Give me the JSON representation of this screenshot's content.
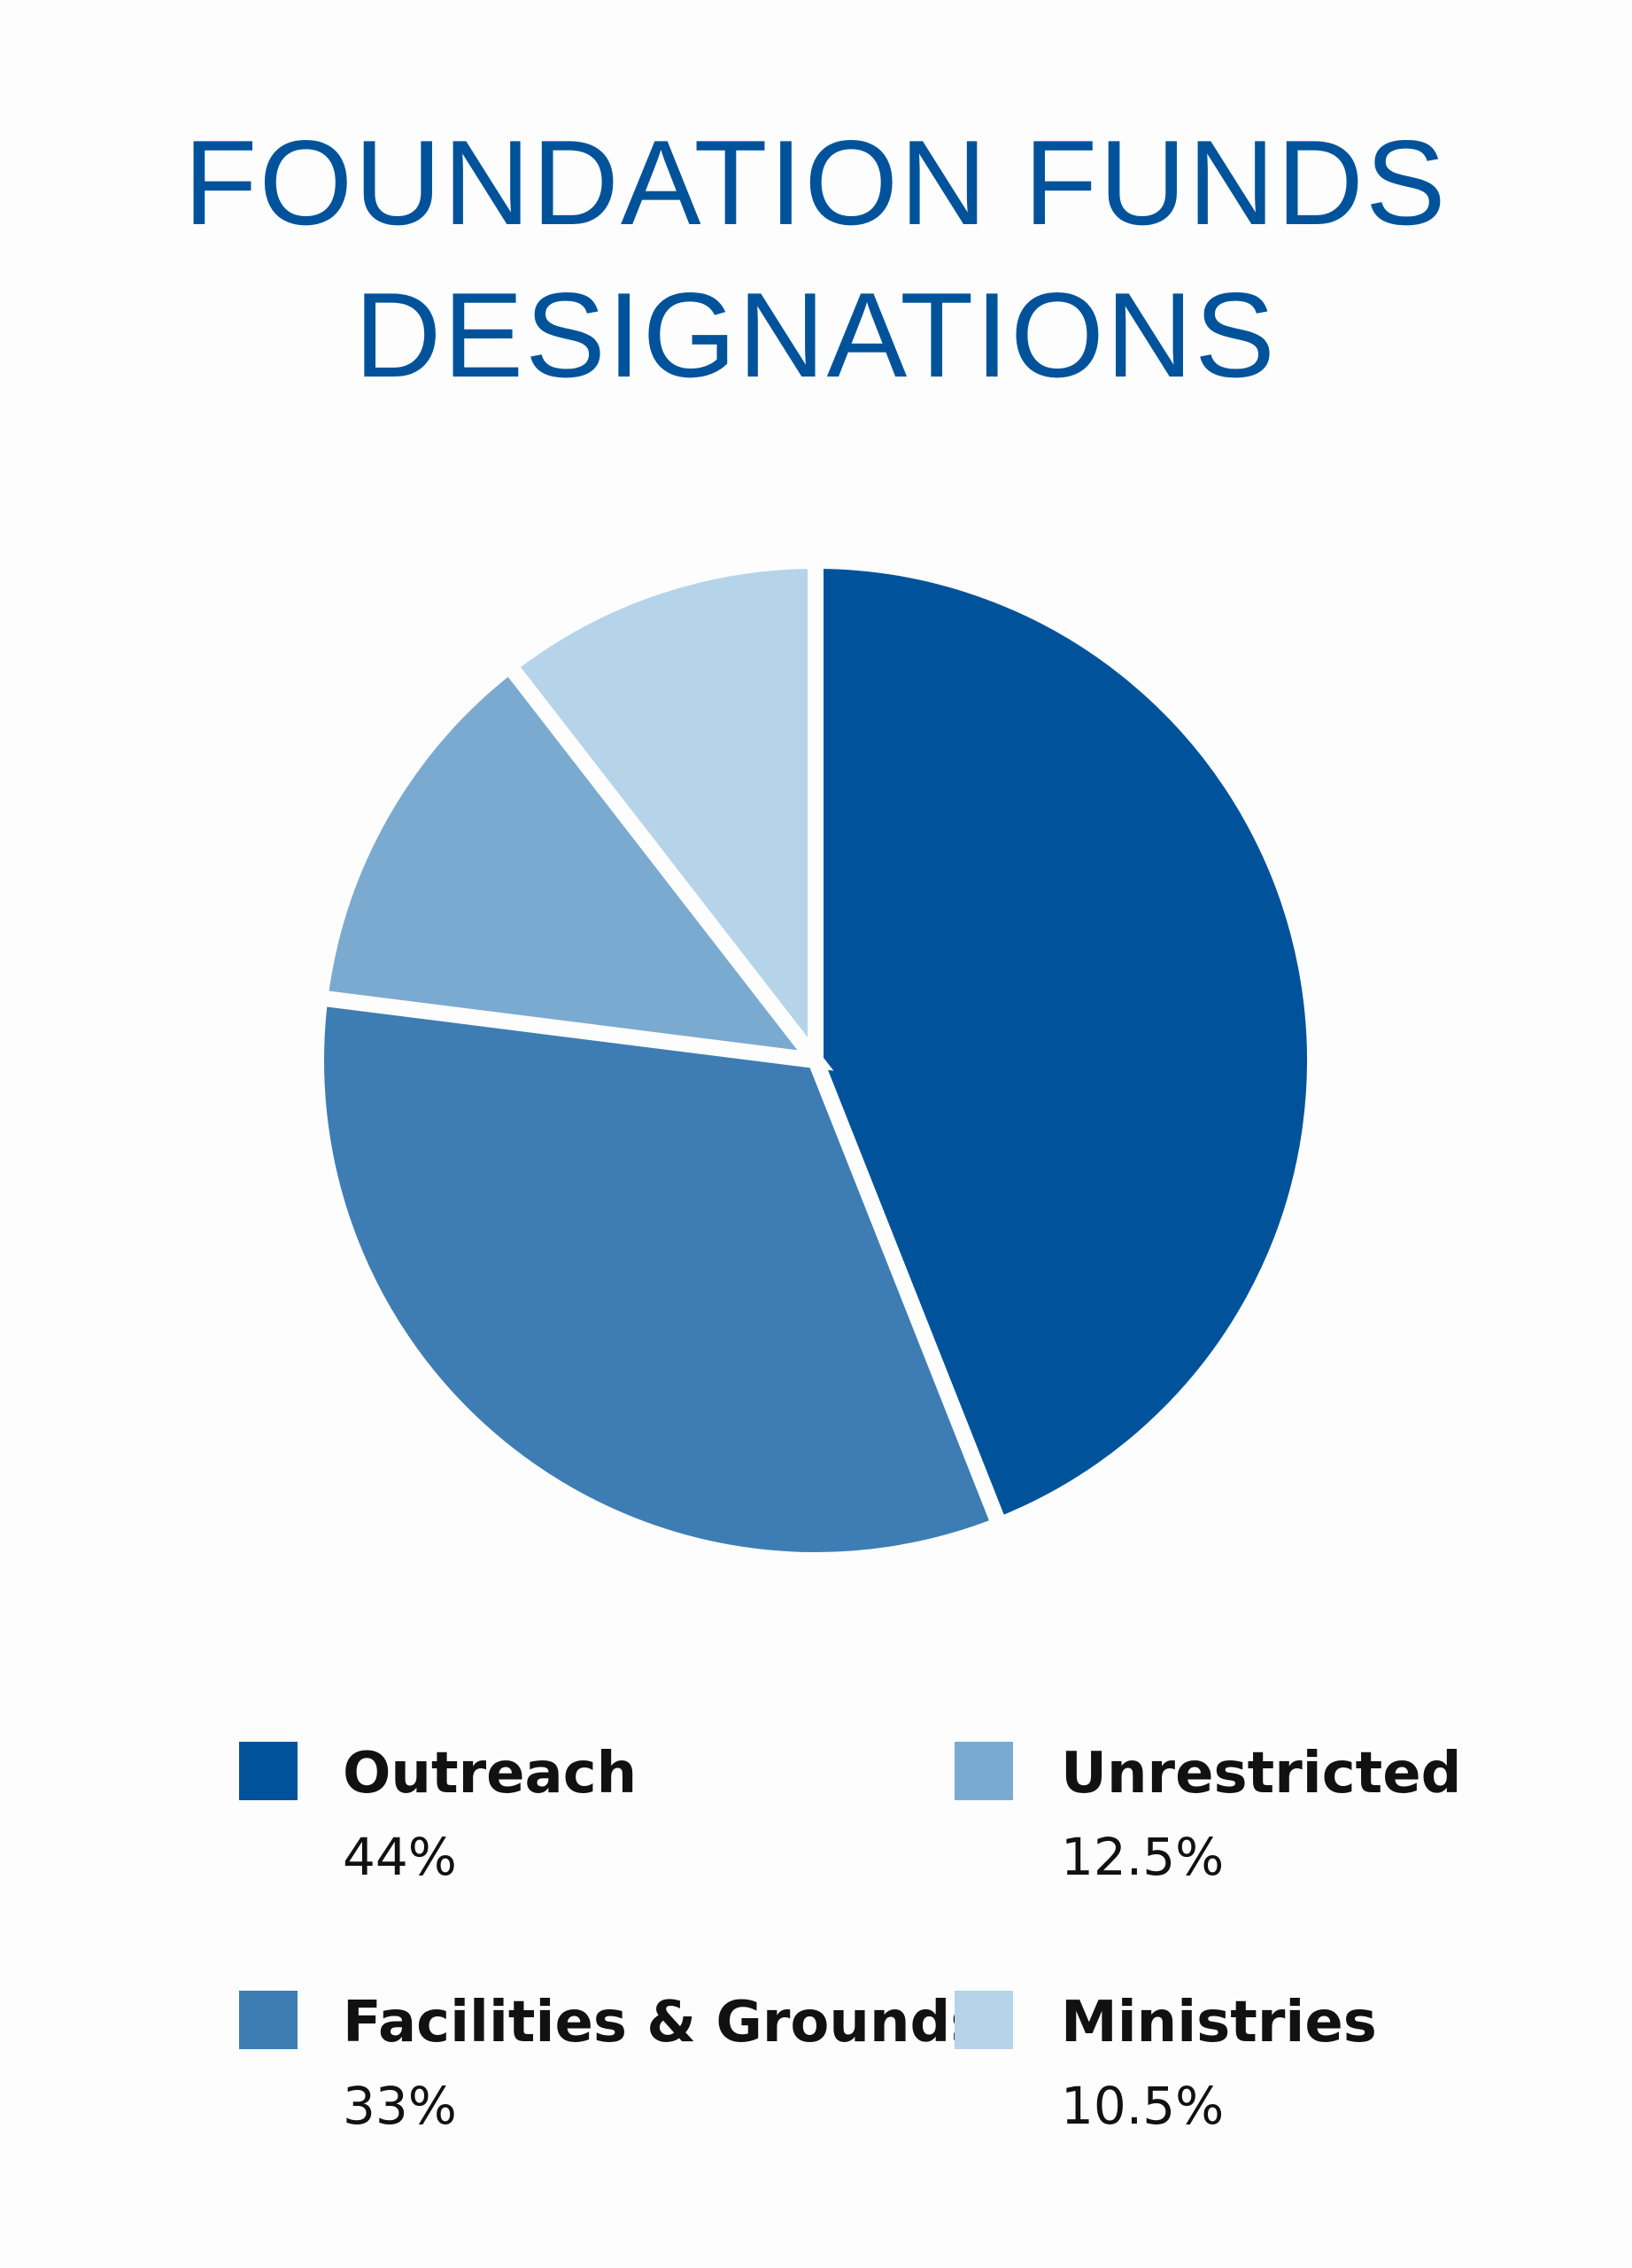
{
  "chart_data": {
    "type": "pie",
    "title": "FOUNDATION FUNDS DESIGNATIONS",
    "categories": [
      "Outreach",
      "Facilities & Grounds",
      "Unrestricted",
      "Ministries"
    ],
    "values": [
      44,
      33,
      12.5,
      10.5
    ],
    "value_labels": [
      "44%",
      "33%",
      "12.5%",
      "10.5%"
    ],
    "colors": [
      "#00539b",
      "#3e7db4",
      "#7baad0",
      "#b5d4ea"
    ]
  }
}
